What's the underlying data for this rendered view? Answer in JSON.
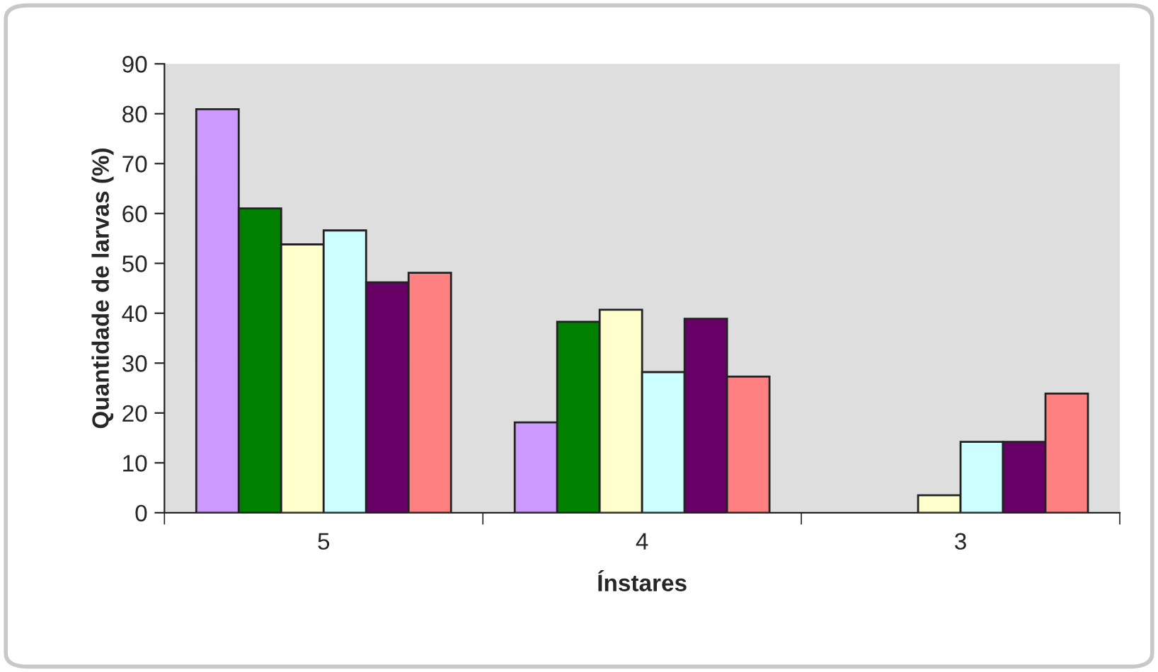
{
  "chart_data": {
    "type": "bar",
    "xlabel": "Ínstares",
    "ylabel": "Quantidade de larvas (%)",
    "categories": [
      "5",
      "4",
      "3"
    ],
    "series": [
      {
        "color": "#cc99ff",
        "values": [
          80.9,
          18.1,
          0
        ]
      },
      {
        "color": "#008000",
        "values": [
          61,
          38.3,
          0
        ]
      },
      {
        "color": "#ffffcc",
        "values": [
          53.8,
          40.7,
          3.5
        ]
      },
      {
        "color": "#ccffff",
        "values": [
          56.6,
          28.2,
          14.2
        ]
      },
      {
        "color": "#660066",
        "values": [
          46.2,
          38.9,
          14.2
        ]
      },
      {
        "color": "#ff8080",
        "values": [
          48.1,
          27.3,
          23.9
        ]
      }
    ],
    "ylim": [
      0,
      90
    ],
    "yticks": [
      0,
      10,
      20,
      30,
      40,
      50,
      60,
      70,
      80,
      90
    ],
    "grid": false,
    "legend": false
  }
}
